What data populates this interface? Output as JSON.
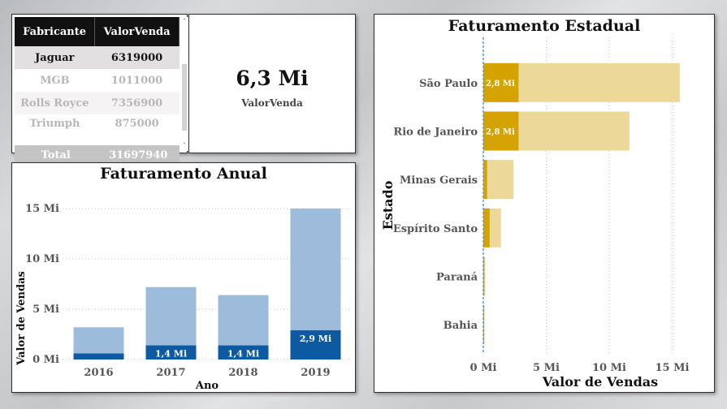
{
  "table": {
    "columns": [
      "Fabricante",
      "ValorVenda"
    ],
    "rows": [
      {
        "fabricante": "Jaguar",
        "valor": "6319000"
      },
      {
        "fabricante": "MGB",
        "valor": "1011000"
      },
      {
        "fabricante": "Rolls Royce",
        "valor": "7356900"
      },
      {
        "fabricante": "Triumph",
        "valor": "875000"
      }
    ],
    "total_label": "Total",
    "total_value": "31697940",
    "scroll_up": "˄",
    "scroll_down": "˅"
  },
  "card": {
    "value": "6,3 Mi",
    "label": "ValorVenda"
  },
  "chart_data": [
    {
      "type": "bar",
      "title": "Faturamento Anual",
      "xlabel": "Ano",
      "ylabel": "Valor de Vendas",
      "categories": [
        "2016",
        "2017",
        "2018",
        "2019"
      ],
      "series": [
        {
          "values": [
            3.2,
            7.2,
            6.4,
            15.0
          ],
          "color": "#9dbcdc"
        },
        {
          "values": [
            0.6,
            1.4,
            1.4,
            2.9
          ],
          "color": "#0d5aa3"
        }
      ],
      "data_labels": [
        "",
        "1,4 Mi",
        "1,4 Mi",
        "2,9 Mi"
      ],
      "yticks": [
        "0 Mi",
        "5 Mi",
        "10 Mi",
        "15 Mi"
      ],
      "ylim": [
        0,
        15
      ],
      "grid": true
    },
    {
      "type": "bar",
      "orientation": "horizontal",
      "title": "Faturamento Estadual",
      "xlabel": "Valor de Vendas",
      "ylabel": "Estado",
      "categories": [
        "São Paulo",
        "Rio de Janeiro",
        "Minas Gerais",
        "Espírito Santo",
        "Paraná",
        "Bahia"
      ],
      "series": [
        {
          "values": [
            15.6,
            11.6,
            2.4,
            1.4,
            0.15,
            0.1
          ],
          "color": "#ecd99a"
        },
        {
          "values": [
            2.8,
            2.8,
            0.3,
            0.5,
            0.08,
            0.05
          ],
          "color": "#d4a300"
        }
      ],
      "data_labels": [
        "2,8 Mi",
        "2,8 Mi",
        "",
        "",
        "",
        ""
      ],
      "xticks": [
        "0 Mi",
        "5 Mi",
        "10 Mi",
        "15 Mi"
      ],
      "xlim": [
        0,
        16
      ],
      "grid": true
    }
  ]
}
